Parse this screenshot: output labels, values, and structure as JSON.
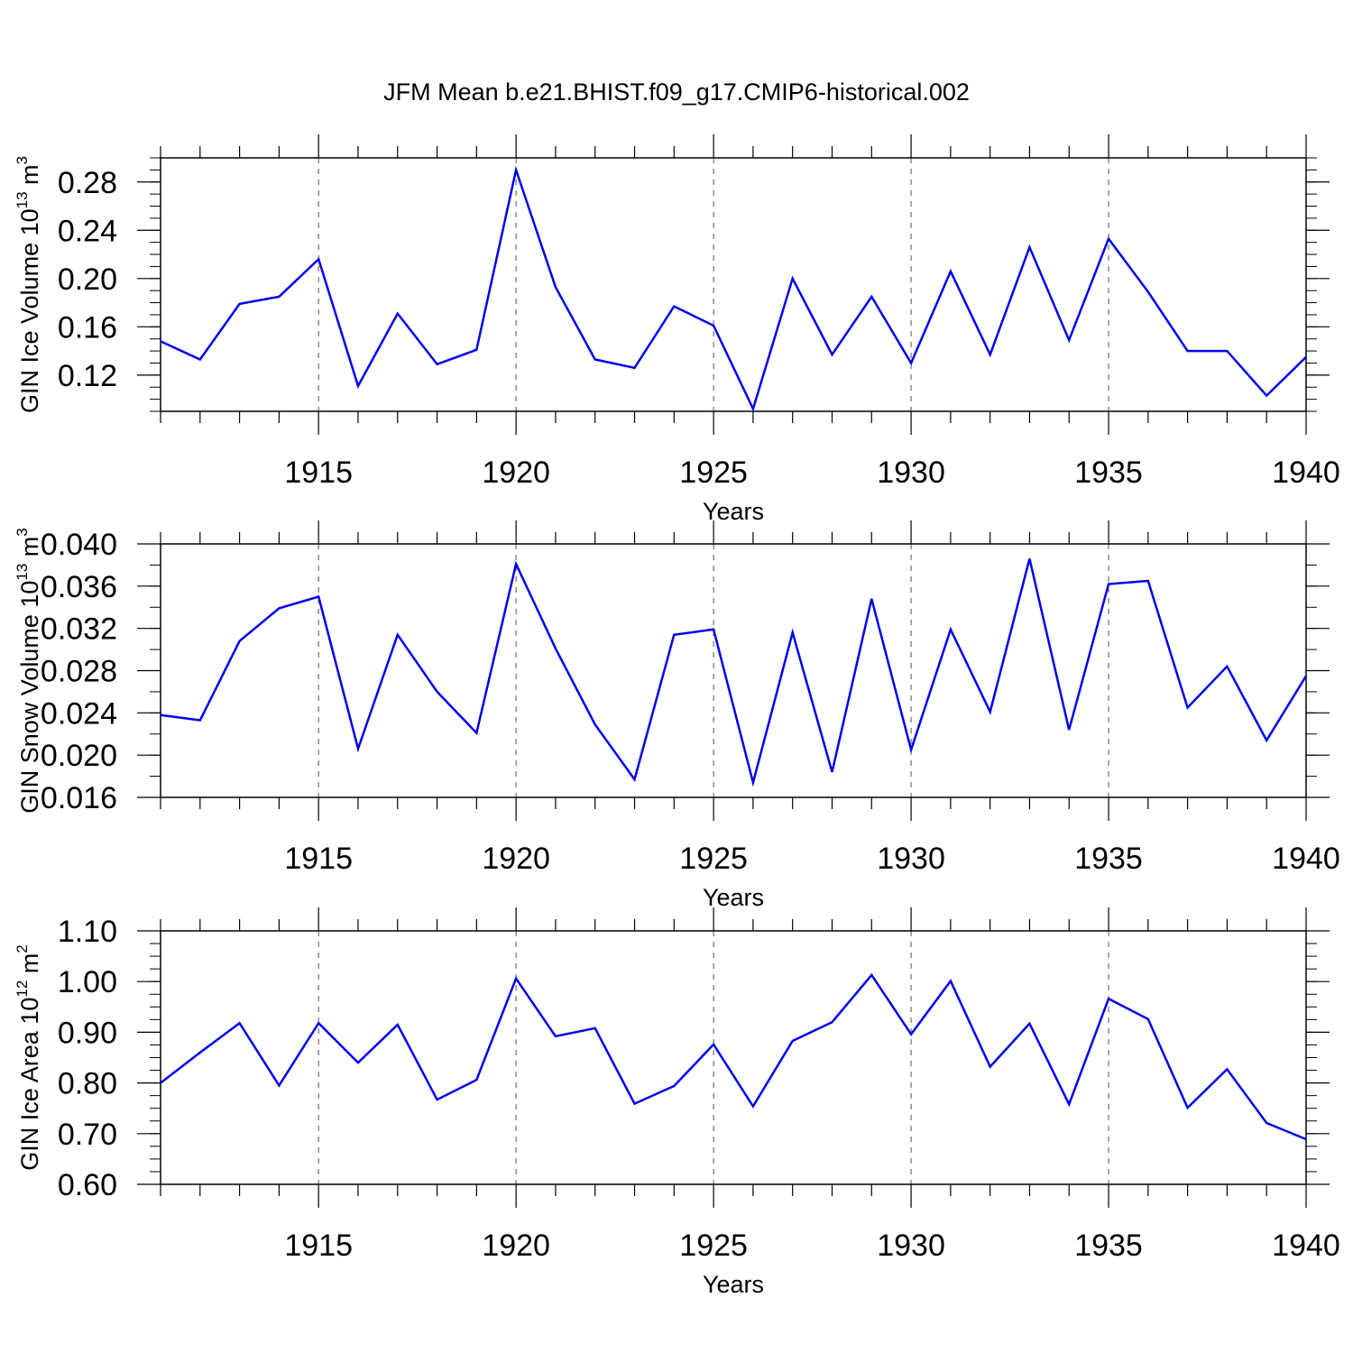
{
  "title": "JFM Mean b.e21.BHIST.f09_g17.CMIP6-historical.002",
  "line_color": "#0000ee",
  "chart_data": [
    {
      "type": "line",
      "title": "JFM Mean b.e21.BHIST.f09_g17.CMIP6-historical.002",
      "xlabel": "Years",
      "ylabel": {
        "main": "GIN Ice Volume 10",
        "exp": "13",
        "unit": " m",
        "unit_exp": "3"
      },
      "xlim": [
        1911,
        1940
      ],
      "ylim": [
        0.09,
        0.3
      ],
      "x_ticks": [
        "1915",
        "1920",
        "1925",
        "1930",
        "1935",
        "1940"
      ],
      "y_ticks": [
        "0.12",
        "0.16",
        "0.20",
        "0.24",
        "0.28"
      ],
      "grid": "dashed vertical at major x ticks",
      "series": [
        {
          "x": [
            1911,
            1912,
            1913,
            1914,
            1915,
            1916,
            1917,
            1918,
            1919,
            1920,
            1921,
            1922,
            1923,
            1924,
            1925,
            1926,
            1927,
            1928,
            1929,
            1930,
            1931,
            1932,
            1933,
            1934,
            1935,
            1936,
            1937,
            1938,
            1939,
            1940
          ],
          "values": [
            0.148,
            0.133,
            0.179,
            0.185,
            0.216,
            0.111,
            0.171,
            0.129,
            0.141,
            0.29,
            0.193,
            0.133,
            0.126,
            0.177,
            0.161,
            0.092,
            0.2,
            0.137,
            0.185,
            0.13,
            0.206,
            0.137,
            0.226,
            0.149,
            0.233,
            0.189,
            0.14,
            0.14,
            0.103,
            0.135
          ]
        }
      ]
    },
    {
      "type": "line",
      "xlabel": "Years",
      "ylabel": {
        "main": "GIN Snow Volume 10",
        "exp": "13",
        "unit": " m",
        "unit_exp": "3"
      },
      "xlim": [
        1911,
        1940
      ],
      "ylim": [
        0.016,
        0.04
      ],
      "x_ticks": [
        "1915",
        "1920",
        "1925",
        "1930",
        "1935",
        "1940"
      ],
      "y_ticks": [
        "0.016",
        "0.020",
        "0.024",
        "0.028",
        "0.032",
        "0.036",
        "0.040"
      ],
      "grid": "dashed vertical at major x ticks",
      "series": [
        {
          "x": [
            1911,
            1912,
            1913,
            1914,
            1915,
            1916,
            1917,
            1918,
            1919,
            1920,
            1921,
            1922,
            1923,
            1924,
            1925,
            1926,
            1927,
            1928,
            1929,
            1930,
            1931,
            1932,
            1933,
            1934,
            1935,
            1936,
            1937,
            1938,
            1939,
            1940
          ],
          "values": [
            0.0238,
            0.0233,
            0.0308,
            0.0339,
            0.035,
            0.0206,
            0.0314,
            0.026,
            0.0221,
            0.0381,
            0.0301,
            0.0229,
            0.0177,
            0.0314,
            0.0319,
            0.0174,
            0.0316,
            0.0184,
            0.0348,
            0.0205,
            0.0319,
            0.0241,
            0.0386,
            0.0224,
            0.0362,
            0.0365,
            0.0245,
            0.0284,
            0.0214,
            0.0275
          ]
        }
      ]
    },
    {
      "type": "line",
      "xlabel": "Years",
      "ylabel": {
        "main": "GIN Ice Area 10",
        "exp": "12",
        "unit": " m",
        "unit_exp": "2"
      },
      "xlim": [
        1911,
        1940
      ],
      "ylim": [
        0.6,
        1.1
      ],
      "x_ticks": [
        "1915",
        "1920",
        "1925",
        "1930",
        "1935",
        "1940"
      ],
      "y_ticks": [
        "0.60",
        "0.70",
        "0.80",
        "0.90",
        "1.00",
        "1.10"
      ],
      "grid": "dashed vertical at major x ticks",
      "series": [
        {
          "x": [
            1911,
            1912,
            1913,
            1914,
            1915,
            1916,
            1917,
            1918,
            1919,
            1920,
            1921,
            1922,
            1923,
            1924,
            1925,
            1926,
            1927,
            1928,
            1929,
            1930,
            1931,
            1932,
            1933,
            1934,
            1935,
            1936,
            1937,
            1938,
            1939,
            1940
          ],
          "values": [
            0.8,
            0.86,
            0.918,
            0.795,
            0.918,
            0.84,
            0.915,
            0.767,
            0.806,
            1.006,
            0.892,
            0.908,
            0.759,
            0.794,
            0.876,
            0.754,
            0.883,
            0.92,
            1.013,
            0.896,
            1.001,
            0.832,
            0.917,
            0.758,
            0.966,
            0.926,
            0.751,
            0.827,
            0.721,
            0.689
          ]
        }
      ]
    }
  ]
}
